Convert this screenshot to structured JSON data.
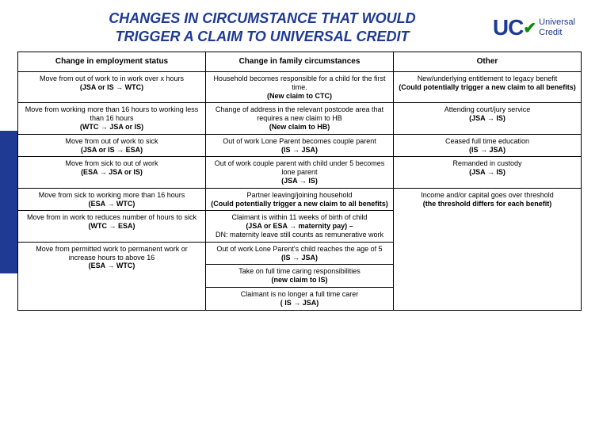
{
  "title_line1": "CHANGES IN CIRCUMSTANCE THAT WOULD",
  "title_line2": "TRIGGER  A CLAIM TO UNIVERSAL CREDIT",
  "logo": {
    "uc": "UC",
    "l1": "Universal",
    "l2": "Credit"
  },
  "colors": {
    "brand": "#1f3a93",
    "check": "#0a8a0a",
    "border": "#000000",
    "bg": "#ffffff"
  },
  "headers": {
    "c1": "Change in employment status",
    "c2": "Change in family circumstances",
    "c3": "Other"
  },
  "rows": [
    {
      "c1a": "Move from out of work to in work over x hours",
      "c1b": "(JSA or IS → WTC)",
      "c2a": "Household becomes responsible for a child for the first time.",
      "c2b": "(New claim to CTC)",
      "c3a": "New/underlying entitlement to legacy benefit",
      "c3b": "(Could potentially trigger a new claim to all benefits)"
    },
    {
      "c1a": "Move from working more than 16 hours to working less than 16 hours",
      "c1b": "(WTC → JSA or IS)",
      "c2a": "Change of address in the relevant postcode area that requires a new claim to HB",
      "c2b": "(New claim to HB)",
      "c3a": "Attending court/jury service",
      "c3b": "(JSA → IS)"
    },
    {
      "c1a": "Move from out of work to sick",
      "c1b": "(JSA or IS → ESA)",
      "c2a": "Out of work Lone Parent becomes couple parent",
      "c2b": "(IS → JSA)",
      "c3a": "Ceased full time education",
      "c3b": "(IS → JSA)"
    },
    {
      "c1a": "Move from sick to out of work",
      "c1b": "(ESA → JSA or IS)",
      "c2a": "Out of work couple parent with child under 5 becomes lone parent",
      "c2b": "(JSA → IS)",
      "c3a": "Remanded in custody",
      "c3b": "(JSA → IS)"
    },
    {
      "c1a": "Move from sick to working more than 16 hours",
      "c1b": "(ESA → WTC)",
      "c2a": "Partner leaving/joining household",
      "c2b": "(Could potentially trigger a new claim to all benefits)",
      "c3a": "Income and/or capital goes over threshold",
      "c3b": "(the threshold differs for each benefit)"
    },
    {
      "c1a": "Move from in work to reduces number of hours to sick",
      "c1b": "(WTC → ESA)",
      "c2a": "Claimant is within 11 weeks of birth of child",
      "c2b": "(JSA or ESA → maternity pay) –",
      "c2c": "DN: maternity leave still counts as remunerative work",
      "c3a": "",
      "c3b": ""
    },
    {
      "c1a": "Move from permitted work to permanent work or increase hours to above 16",
      "c1b": "(ESA → WTC)",
      "c2a": "Out of work Lone Parent's child reaches the age of 5",
      "c2b": "(IS → JSA)",
      "c3a": "",
      "c3b": ""
    },
    {
      "c1a": "",
      "c1b": "",
      "c2a": "Take on full time caring responsibilities",
      "c2b": "(new claim to IS)",
      "c3a": "",
      "c3b": ""
    },
    {
      "c1a": "",
      "c1b": "",
      "c2a": "Claimant is no longer a full time carer",
      "c2b": "( IS → JSA)",
      "c3a": "",
      "c3b": ""
    }
  ]
}
